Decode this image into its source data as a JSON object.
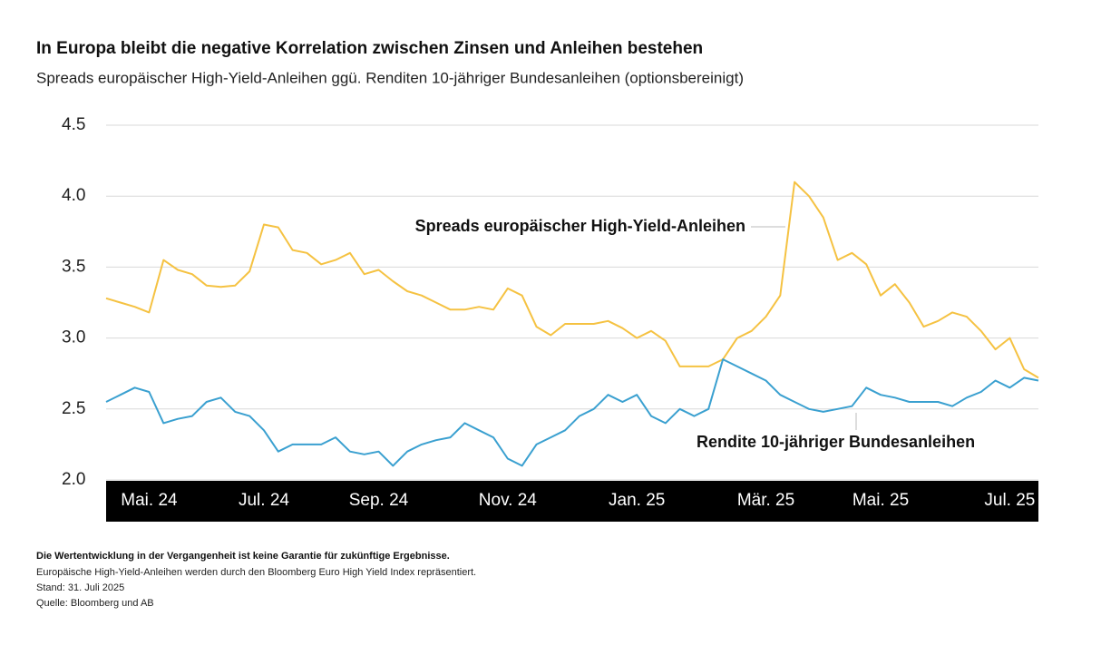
{
  "chart_data": {
    "type": "line",
    "title": "In Europa bleibt die negative Korrelation zwischen Zinsen und Anleihen bestehen",
    "subtitle": "Spreads europäischer High-Yield-Anleihen ggü. Renditen 10-jähriger Bundesanleihen (optionsbereinigt)",
    "categories": [
      null,
      null,
      null,
      "Mai. 24",
      null,
      null,
      null,
      null,
      null,
      null,
      null,
      "Jul. 24",
      null,
      null,
      null,
      null,
      null,
      null,
      null,
      "Sep. 24",
      null,
      null,
      null,
      null,
      null,
      null,
      null,
      null,
      "Nov. 24",
      null,
      null,
      null,
      null,
      null,
      null,
      null,
      null,
      "Jan. 25",
      null,
      null,
      null,
      null,
      null,
      null,
      null,
      null,
      "Mär. 25",
      null,
      null,
      null,
      null,
      null,
      null,
      null,
      "Mai. 25",
      null,
      null,
      null,
      null,
      null,
      null,
      null,
      null,
      "Jul. 25",
      null,
      null
    ],
    "series": [
      {
        "name": "Spreads europäischer High-Yield-Anleihen",
        "color": "#f5c242",
        "values": [
          3.28,
          3.25,
          3.22,
          3.18,
          3.55,
          3.48,
          3.45,
          3.37,
          3.36,
          3.37,
          3.47,
          3.8,
          3.78,
          3.62,
          3.6,
          3.52,
          3.55,
          3.6,
          3.45,
          3.48,
          3.4,
          3.33,
          3.3,
          3.25,
          3.2,
          3.2,
          3.22,
          3.2,
          3.35,
          3.3,
          3.08,
          3.02,
          3.1,
          3.1,
          3.1,
          3.12,
          3.07,
          3.0,
          3.05,
          2.98,
          2.8,
          2.8,
          2.8,
          2.85,
          3.0,
          3.05,
          3.15,
          3.3,
          4.1,
          4.0,
          3.85,
          3.55,
          3.6,
          3.52,
          3.3,
          3.38,
          3.25,
          3.08,
          3.12,
          3.18,
          3.15,
          3.05,
          2.92,
          3.0,
          2.78,
          2.72
        ]
      },
      {
        "name": "Rendite 10-jähriger Bundesanleihen",
        "color": "#3aa0d0",
        "values": [
          2.55,
          2.6,
          2.65,
          2.62,
          2.4,
          2.43,
          2.45,
          2.55,
          2.58,
          2.48,
          2.45,
          2.35,
          2.2,
          2.25,
          2.25,
          2.25,
          2.3,
          2.2,
          2.18,
          2.2,
          2.1,
          2.2,
          2.25,
          2.28,
          2.3,
          2.4,
          2.35,
          2.3,
          2.15,
          2.1,
          2.25,
          2.3,
          2.35,
          2.45,
          2.5,
          2.6,
          2.55,
          2.6,
          2.45,
          2.4,
          2.5,
          2.45,
          2.5,
          2.85,
          2.8,
          2.75,
          2.7,
          2.6,
          2.55,
          2.5,
          2.48,
          2.5,
          2.52,
          2.65,
          2.6,
          2.58,
          2.55,
          2.55,
          2.55,
          2.52,
          2.58,
          2.62,
          2.7,
          2.65,
          2.72,
          2.7
        ]
      }
    ],
    "ylim": [
      2.0,
      4.5
    ],
    "yticks": [
      {
        "value": 2.0,
        "label": "2.0"
      },
      2.5,
      {
        "value": 3.0,
        "label": "3.0"
      },
      3.5,
      {
        "value": 4.0,
        "label": "4.0"
      },
      4.5
    ],
    "grid": true,
    "footnotes": [
      "Die Wertentwicklung in der Vergangenheit ist keine Garantie für zukünftige Ergebnisse.",
      "Europäische High-Yield-Anleihen werden durch den Bloomberg Euro High Yield Index repräsentiert.",
      "Stand: 31. Juli 2025",
      "Quelle: Bloomberg und AB"
    ]
  }
}
